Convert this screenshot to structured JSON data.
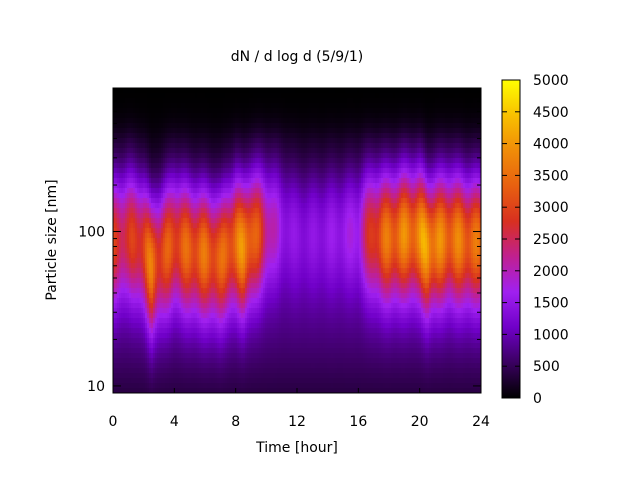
{
  "chart_data": {
    "type": "heatmap",
    "title": "dN / d log d (5/9/1)",
    "xlabel": "Time [hour]",
    "ylabel": "Particle size [nm]",
    "xlim": [
      0,
      24
    ],
    "ylim": [
      9,
      850
    ],
    "y_scale": "log",
    "x_ticks": [
      0,
      4,
      8,
      12,
      16,
      20,
      24
    ],
    "x_tick_labels": [
      "0",
      "4",
      "8",
      "12",
      "16",
      "20",
      "24"
    ],
    "y_ticks": [
      10,
      100
    ],
    "y_tick_labels": [
      "10",
      "100"
    ],
    "colorbar": {
      "range": [
        0,
        5000
      ],
      "ticks": [
        0,
        500,
        1000,
        1500,
        2000,
        2500,
        3000,
        3500,
        4000,
        4500,
        5000
      ],
      "tick_labels": [
        "0",
        "500",
        "1000",
        "1500",
        "2000",
        "2500",
        "3000",
        "3500",
        "4000",
        "4500",
        "5000"
      ],
      "colormap": [
        "#000000",
        "#3a0060",
        "#7000c8",
        "#a020f0",
        "#c02090",
        "#d83020",
        "#e86010",
        "#f08c08",
        "#f8c000",
        "#ffff00"
      ]
    },
    "grid": false,
    "legend": "colorbar-right",
    "z_samples": {
      "note_axis_x": [
        0,
        1,
        2,
        2.5,
        3,
        4,
        5,
        6,
        7,
        8,
        8.5,
        9,
        10,
        11,
        12,
        13,
        14,
        15,
        16,
        17,
        18,
        19,
        20,
        20.5,
        21,
        22,
        23,
        24
      ],
      "peak_values": [
        2600,
        2500,
        2900,
        3300,
        2800,
        3000,
        3100,
        3200,
        3000,
        3400,
        3700,
        3500,
        2200,
        1300,
        1100,
        1100,
        1200,
        1300,
        1500,
        2900,
        3400,
        3600,
        3700,
        4200,
        3600,
        3500,
        3400,
        3200
      ],
      "peak_size_nm": [
        90,
        100,
        85,
        60,
        70,
        90,
        80,
        75,
        70,
        90,
        80,
        95,
        110,
        120,
        110,
        110,
        110,
        110,
        110,
        100,
        95,
        100,
        100,
        80,
        90,
        95,
        90,
        90
      ]
    }
  }
}
